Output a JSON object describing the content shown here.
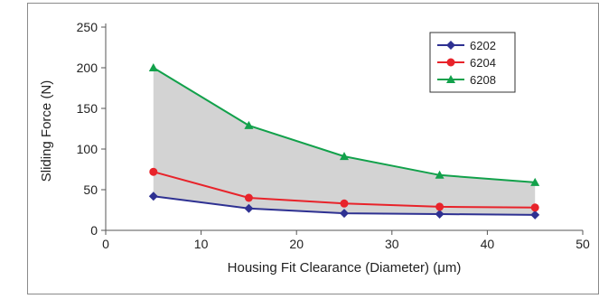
{
  "chart_data": {
    "type": "line",
    "title": "",
    "xlabel": "Housing Fit Clearance (Diameter) (μm)",
    "ylabel": "Sliding Force (N)",
    "xlim": [
      0,
      50
    ],
    "ylim": [
      0,
      250
    ],
    "xticks": [
      "0",
      "10",
      "20",
      "30",
      "40",
      "50"
    ],
    "yticks": [
      "0",
      "50",
      "100",
      "150",
      "200",
      "250"
    ],
    "grid": false,
    "legend_position": "top-right",
    "shaded_band": {
      "between": [
        "6202",
        "6208"
      ],
      "color": "#d3d3d3"
    },
    "x": [
      5,
      15,
      25,
      35,
      45
    ],
    "series": [
      {
        "name": "6202",
        "values": [
          42,
          27,
          21,
          20,
          19
        ],
        "color": "#2e3192",
        "marker": "diamond"
      },
      {
        "name": "6204",
        "values": [
          72,
          40,
          33,
          29,
          28
        ],
        "color": "#e8232a",
        "marker": "circle"
      },
      {
        "name": "6208",
        "values": [
          200,
          129,
          91,
          68,
          59
        ],
        "color": "#12a14b",
        "marker": "triangle"
      }
    ]
  }
}
